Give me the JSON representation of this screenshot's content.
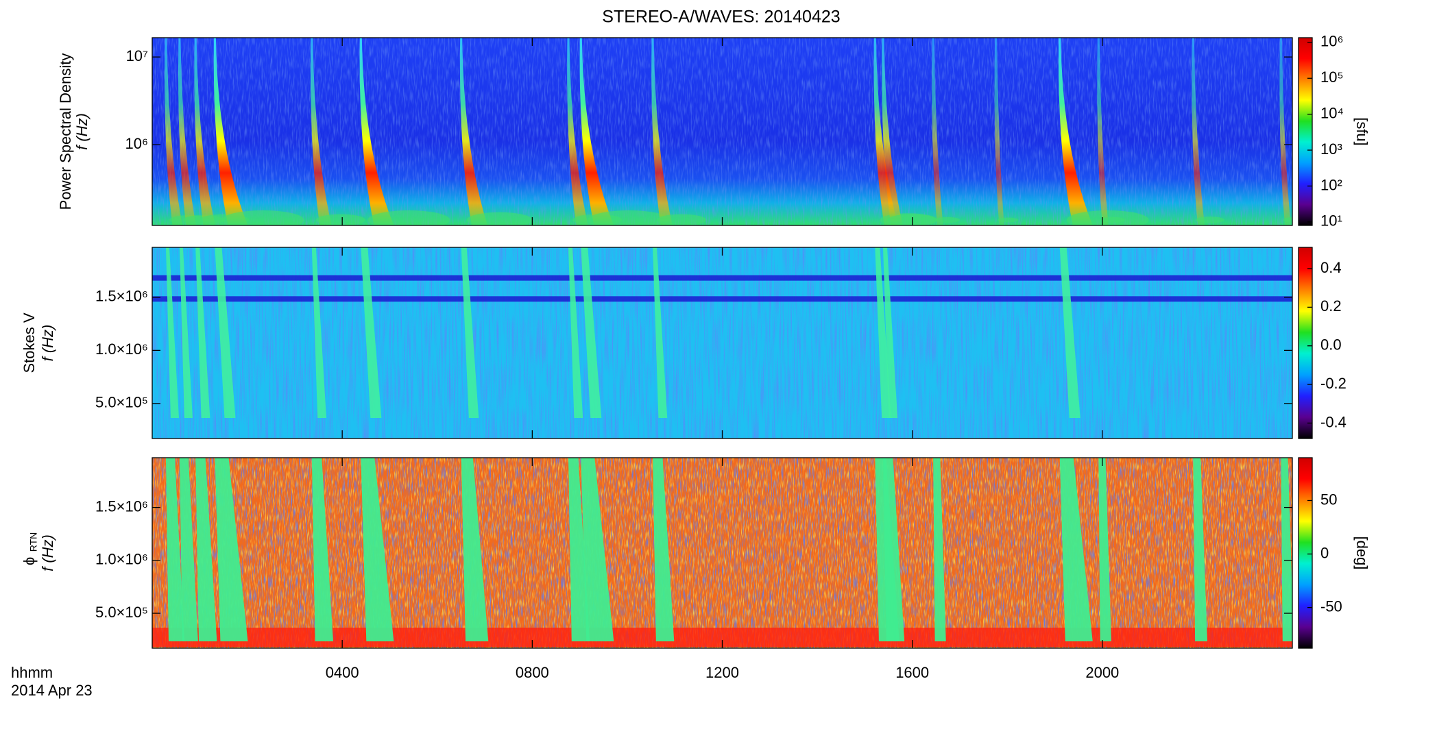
{
  "title": "STEREO-A/WAVES: 20140423",
  "xaxis": {
    "label": "hhmm",
    "date": "2014 Apr 23",
    "xlim": [
      0,
      24
    ],
    "xticks": [
      {
        "value": 4,
        "label": "0400"
      },
      {
        "value": 8,
        "label": "0800"
      },
      {
        "value": 12,
        "label": "1200"
      },
      {
        "value": 16,
        "label": "1600"
      },
      {
        "value": 20,
        "label": "2000"
      }
    ]
  },
  "colormap": [
    "#000000",
    "#5a0090",
    "#2020ff",
    "#00a0ff",
    "#00f0d0",
    "#20e020",
    "#ffff00",
    "#ff8000",
    "#ff0000",
    "#d00000"
  ],
  "chart_data": [
    {
      "type": "heatmap",
      "ylabel": "Power Spectral Density",
      "ylabel2": "f (Hz)",
      "ylog": true,
      "ylim": [
        120000,
        16600000
      ],
      "yticks": [
        {
          "value": 1000000,
          "label": "10⁶"
        },
        {
          "value": 10000000,
          "label": "10⁷"
        }
      ],
      "clog": true,
      "clim": [
        8,
        1350000
      ],
      "cticks": [
        {
          "value": 10,
          "label": "10¹"
        },
        {
          "value": 100,
          "label": "10²"
        },
        {
          "value": 1000,
          "label": "10³"
        },
        {
          "value": 10000,
          "label": "10⁴"
        },
        {
          "value": 100000,
          "label": "10⁵"
        },
        {
          "value": 1000000,
          "label": "10⁶"
        }
      ],
      "clabel": "[sfu]"
    },
    {
      "type": "heatmap",
      "ylabel": "Stokes V",
      "ylabel2": "f (Hz)",
      "ylog": false,
      "ylim": [
        170000,
        1970000
      ],
      "yticks": [
        {
          "value": 500000,
          "label": "5.0×10⁵"
        },
        {
          "value": 1000000,
          "label": "1.0×10⁶"
        },
        {
          "value": 1500000,
          "label": "1.5×10⁶"
        }
      ],
      "clog": false,
      "clim": [
        -0.48,
        0.51
      ],
      "cticks": [
        0.4,
        0.2,
        {
          "value": 0,
          "label": "0.0"
        },
        -0.2,
        -0.4
      ]
    },
    {
      "type": "heatmap",
      "ylabel": "ϕ",
      "ylabel_sub": "RTN",
      "ylabel2": "f (Hz)",
      "ylog": false,
      "ylim": [
        170000,
        1970000
      ],
      "yticks": [
        {
          "value": 500000,
          "label": "5.0×10⁵"
        },
        {
          "value": 1000000,
          "label": "1.0×10⁶"
        },
        {
          "value": 1500000,
          "label": "1.5×10⁶"
        }
      ],
      "clog": false,
      "clim": [
        -88,
        90
      ],
      "cticks": [
        50,
        0,
        -50
      ],
      "clabel": "[deg]"
    }
  ]
}
